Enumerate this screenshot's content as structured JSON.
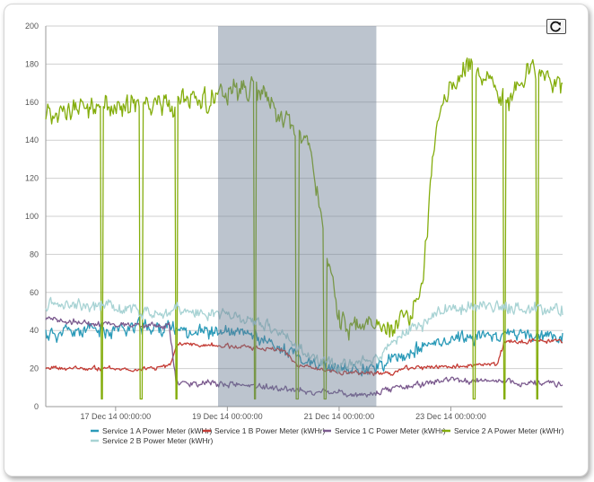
{
  "chart_data": {
    "type": "line",
    "title": "",
    "xlabel": "",
    "ylabel": "",
    "ylim": [
      0,
      200
    ],
    "yticks": [
      "0",
      "20",
      "40",
      "60",
      "80",
      "100",
      "120",
      "140",
      "160",
      "180",
      "200"
    ],
    "xlim": [
      "2014-12-15T18:00",
      "2014-12-25T00:00"
    ],
    "xticks": [
      {
        "t": "2014-12-17T00:00",
        "label": "17 Dec 14 00:00:00"
      },
      {
        "t": "2014-12-19T00:00",
        "label": "19 Dec 14 00:00:00"
      },
      {
        "t": "2014-12-21T00:00",
        "label": "21 Dec 14 00:00:00"
      },
      {
        "t": "2014-12-23T00:00",
        "label": "23 Dec 14 00:00:00"
      }
    ],
    "grid": true,
    "highlight": {
      "start": "2014-12-18T20:00",
      "end": "2014-12-21T16:00"
    },
    "legend_position": "bottom",
    "series": [
      {
        "name": "Service 1 A Power Meter (kWHr)",
        "color": "#2a9ab8",
        "base": [
          [
            "2014-12-15T18:00",
            38
          ],
          [
            "2014-12-17T12:00",
            42
          ],
          [
            "2014-12-18T12:00",
            40
          ],
          [
            "2014-12-19T12:00",
            37
          ],
          [
            "2014-12-20T00:00",
            30
          ],
          [
            "2014-12-20T12:00",
            22
          ],
          [
            "2014-12-21T00:00",
            19
          ],
          [
            "2014-12-21T18:00",
            22
          ],
          [
            "2014-12-22T06:00",
            28
          ],
          [
            "2014-12-23T00:00",
            36
          ],
          [
            "2014-12-24T00:00",
            38
          ],
          [
            "2014-12-25T00:00",
            36
          ]
        ],
        "noise": 6,
        "seed": 11
      },
      {
        "name": "Service 1 B Power Meter (kWHr)",
        "color": "#c43c35",
        "base": [
          [
            "2014-12-15T18:00",
            20
          ],
          [
            "2014-12-17T12:00",
            20
          ],
          [
            "2014-12-17T23:00",
            21
          ],
          [
            "2014-12-18T03:00",
            33
          ],
          [
            "2014-12-19T12:00",
            31
          ],
          [
            "2014-12-20T00:00",
            30
          ],
          [
            "2014-12-20T06:00",
            22
          ],
          [
            "2014-12-21T00:00",
            18
          ],
          [
            "2014-12-21T23:00",
            17
          ],
          [
            "2014-12-22T02:00",
            20
          ],
          [
            "2014-12-23T20:00",
            22
          ],
          [
            "2014-12-23T23:00",
            34
          ],
          [
            "2014-12-25T00:00",
            35
          ]
        ],
        "noise": 1.8,
        "seed": 23
      },
      {
        "name": "Service 1 C Power Meter (kWHr)",
        "color": "#7b5a8e",
        "base": [
          [
            "2014-12-15T18:00",
            45
          ],
          [
            "2014-12-17T23:00",
            42
          ],
          [
            "2014-12-18T02:00",
            13
          ],
          [
            "2014-12-19T12:00",
            11
          ],
          [
            "2014-12-20T12:00",
            8
          ],
          [
            "2014-12-21T12:00",
            6
          ],
          [
            "2014-12-22T00:00",
            10
          ],
          [
            "2014-12-23T00:00",
            14
          ],
          [
            "2014-12-24T00:00",
            13
          ],
          [
            "2014-12-25T00:00",
            12
          ]
        ],
        "noise": 2.5,
        "seed": 37
      },
      {
        "name": "Service 2 A Power Meter (kWHr)",
        "color": "#84ad0c",
        "base": [
          [
            "2014-12-15T18:00",
            155
          ],
          [
            "2014-12-17T00:00",
            158
          ],
          [
            "2014-12-18T00:00",
            160
          ],
          [
            "2014-12-19T00:00",
            162
          ],
          [
            "2014-12-19T12:00",
            168
          ],
          [
            "2014-12-20T00:00",
            152
          ],
          [
            "2014-12-20T12:00",
            135
          ],
          [
            "2014-12-20T20:00",
            70
          ],
          [
            "2014-12-21T00:00",
            45
          ],
          [
            "2014-12-21T12:00",
            40
          ],
          [
            "2014-12-21T22:00",
            42
          ],
          [
            "2014-12-22T06:00",
            50
          ],
          [
            "2014-12-22T12:00",
            65
          ],
          [
            "2014-12-22T18:00",
            155
          ],
          [
            "2014-12-23T06:00",
            178
          ],
          [
            "2014-12-23T12:00",
            175
          ],
          [
            "2014-12-24T00:00",
            160
          ],
          [
            "2014-12-24T12:00",
            178
          ],
          [
            "2014-12-25T00:00",
            170
          ]
        ],
        "noise": 9,
        "seed": 53,
        "dips": [
          "2014-12-16T18:00",
          "2014-12-17T11:00",
          "2014-12-18T02:00",
          "2014-12-19T12:00",
          "2014-12-20T06:00",
          "2014-12-20T18:00",
          "2014-12-23T10:00",
          "2014-12-23T23:00",
          "2014-12-24T13:00"
        ]
      },
      {
        "name": "Service 2 B Power Meter (kWHr)",
        "color": "#a8d3d4",
        "base": [
          [
            "2014-12-15T18:00",
            55
          ],
          [
            "2014-12-17T00:00",
            52
          ],
          [
            "2014-12-18T00:00",
            50
          ],
          [
            "2014-12-19T00:00",
            48
          ],
          [
            "2014-12-19T12:00",
            44
          ],
          [
            "2014-12-20T00:00",
            38
          ],
          [
            "2014-12-20T12:00",
            26
          ],
          [
            "2014-12-21T00:00",
            20
          ],
          [
            "2014-12-21T18:00",
            28
          ],
          [
            "2014-12-22T06:00",
            40
          ],
          [
            "2014-12-23T00:00",
            52
          ],
          [
            "2014-12-24T00:00",
            52
          ],
          [
            "2014-12-25T00:00",
            50
          ]
        ],
        "noise": 5,
        "seed": 71
      }
    ]
  },
  "toolbar": {
    "reset_icon": "refresh-icon"
  }
}
